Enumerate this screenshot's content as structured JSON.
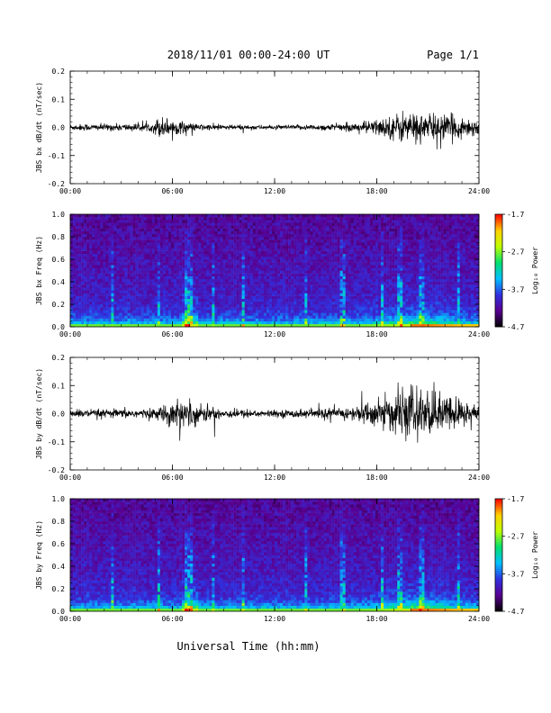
{
  "header": {
    "title": "2018/11/01  00:00-24:00 UT",
    "page": "Page 1/1"
  },
  "footer": {
    "xlabel": "Universal Time (hh:mm)"
  },
  "colors": {
    "trace": "#000000",
    "colormap": [
      "#000000",
      "#5a0090",
      "#3030e0",
      "#00c0ff",
      "#00e070",
      "#c0ff00",
      "#ffd000",
      "#ff0000"
    ]
  },
  "chart_data": [
    {
      "type": "line",
      "ylabel": "JBS bx dB/dt (nT/sec)",
      "xlim": [
        0,
        24
      ],
      "ylim": [
        -0.2,
        0.2
      ],
      "yticks": [
        "0.2",
        "0.1",
        "0.0",
        "-0.1",
        "-0.2"
      ],
      "xticks": [
        "00:00",
        "06:00",
        "12:00",
        "18:00",
        "24:00"
      ],
      "envelope": [
        {
          "t": 0,
          "amp": 0.01
        },
        {
          "t": 4.8,
          "amp": 0.012
        },
        {
          "t": 5.2,
          "amp": 0.035
        },
        {
          "t": 6.5,
          "amp": 0.02
        },
        {
          "t": 7.5,
          "amp": 0.01
        },
        {
          "t": 12,
          "amp": 0.006
        },
        {
          "t": 16.5,
          "amp": 0.012
        },
        {
          "t": 18.5,
          "amp": 0.03
        },
        {
          "t": 19.5,
          "amp": 0.05
        },
        {
          "t": 22,
          "amp": 0.04
        },
        {
          "t": 24,
          "amp": 0.025
        }
      ]
    },
    {
      "type": "heatmap",
      "ylabel": "JBS bx Freq (Hz)",
      "xlim": [
        0,
        24
      ],
      "ylim": [
        0,
        1.0
      ],
      "yticks": [
        "1.0",
        "0.8",
        "0.6",
        "0.4",
        "0.2",
        "0.0"
      ],
      "xticks": [
        "00:00",
        "06:00",
        "12:00",
        "18:00",
        "24:00"
      ],
      "colorbar": {
        "label": "Log₁₀ Power",
        "range": [
          -4.7,
          -1.7
        ],
        "ticks": [
          "-1.7",
          "-2.7",
          "-3.7",
          "-4.7"
        ]
      }
    },
    {
      "type": "line",
      "ylabel": "JBS by dB/dt (nT/sec)",
      "xlim": [
        0,
        24
      ],
      "ylim": [
        -0.2,
        0.2
      ],
      "yticks": [
        "0.2",
        "0.1",
        "0.0",
        "-0.1",
        "-0.2"
      ],
      "xticks": [
        "00:00",
        "06:00",
        "12:00",
        "18:00",
        "24:00"
      ],
      "envelope": [
        {
          "t": 0,
          "amp": 0.012
        },
        {
          "t": 5.0,
          "amp": 0.015
        },
        {
          "t": 6.5,
          "amp": 0.05
        },
        {
          "t": 7.5,
          "amp": 0.03
        },
        {
          "t": 9,
          "amp": 0.015
        },
        {
          "t": 12,
          "amp": 0.01
        },
        {
          "t": 16.5,
          "amp": 0.02
        },
        {
          "t": 18.5,
          "amp": 0.05
        },
        {
          "t": 20,
          "amp": 0.08
        },
        {
          "t": 22,
          "amp": 0.06
        },
        {
          "t": 24,
          "amp": 0.03
        }
      ]
    },
    {
      "type": "heatmap",
      "ylabel": "JBS by Freq (Hz)",
      "xlim": [
        0,
        24
      ],
      "ylim": [
        0,
        1.0
      ],
      "yticks": [
        "1.0",
        "0.8",
        "0.6",
        "0.4",
        "0.2",
        "0.0"
      ],
      "xticks": [
        "00:00",
        "06:00",
        "12:00",
        "18:00",
        "24:00"
      ],
      "colorbar": {
        "label": "Log₁₀ Power",
        "range": [
          -4.7,
          -1.7
        ],
        "ticks": [
          "-1.7",
          "-2.7",
          "-3.7",
          "-4.7"
        ]
      }
    }
  ]
}
